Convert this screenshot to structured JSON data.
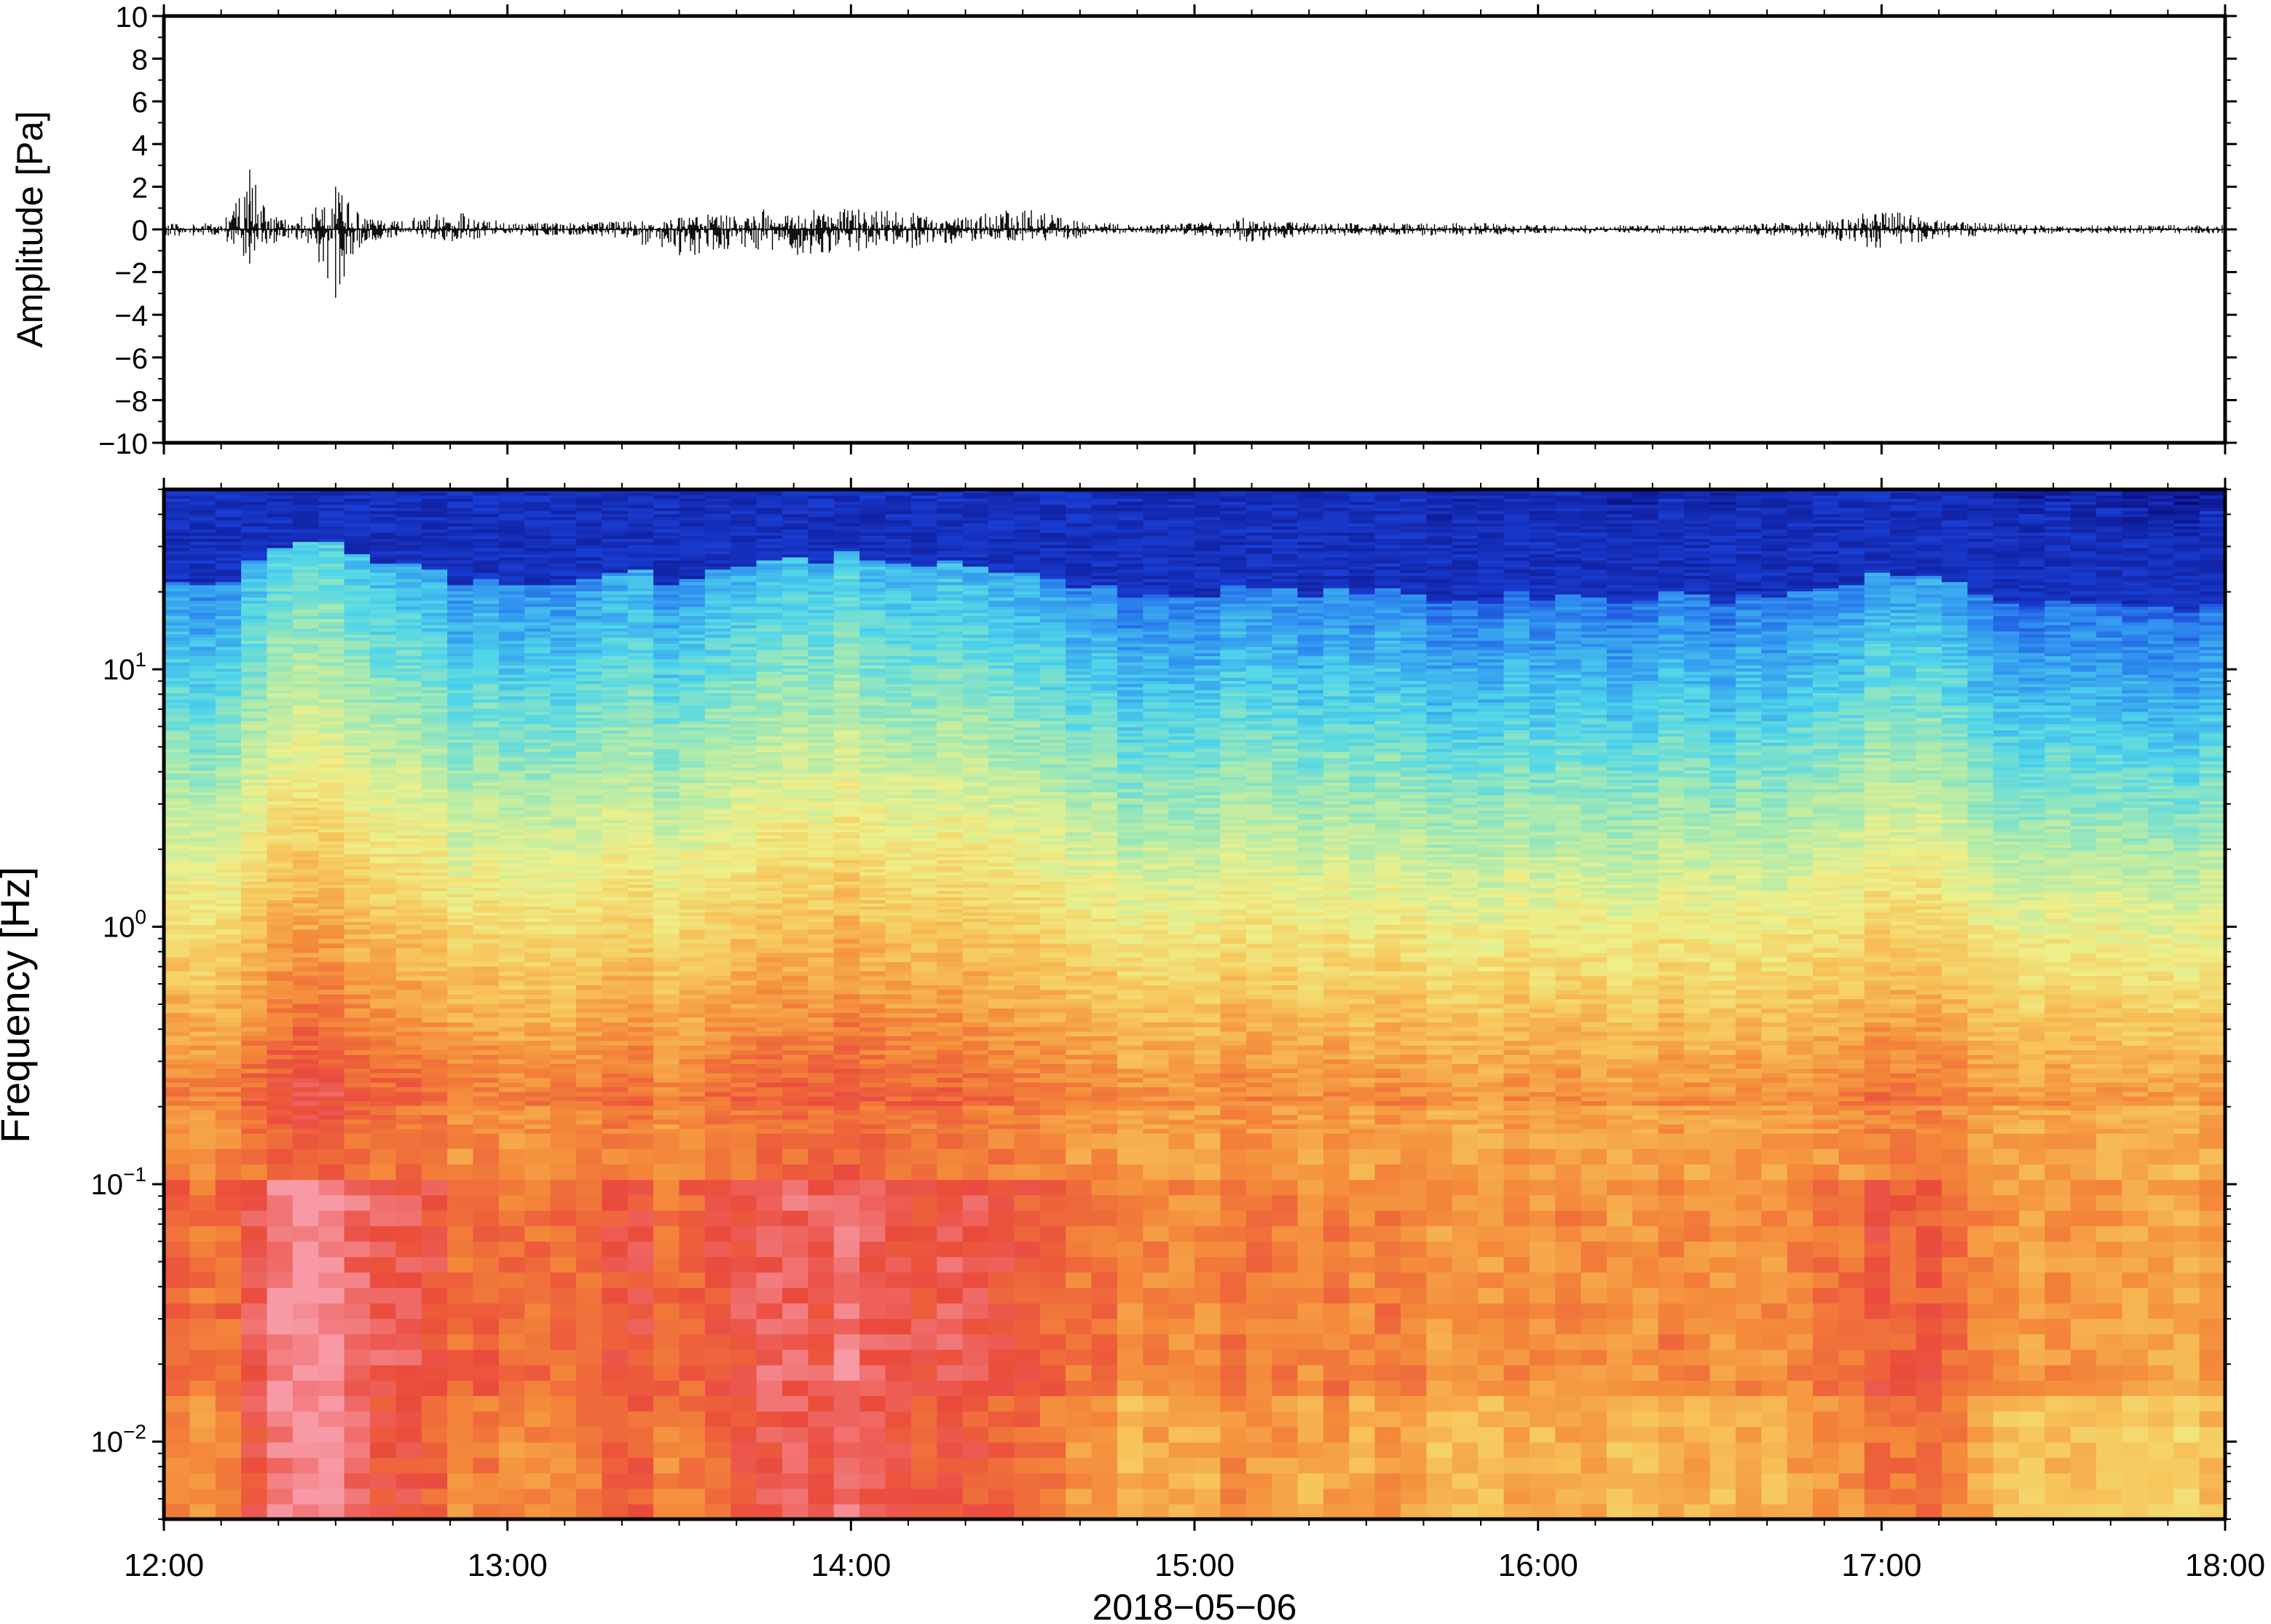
{
  "chart_data": [
    {
      "type": "line",
      "panel": "waveform",
      "ylabel": "Amplitude [Pa]",
      "ylim": [
        -10,
        10
      ],
      "yticks": [
        -10,
        -8,
        -6,
        -4,
        -2,
        0,
        2,
        4,
        6,
        8,
        10
      ],
      "ytick_labels": [
        "−10",
        "−8",
        "−6",
        "−4",
        "−2",
        "0",
        "2",
        "4",
        "6",
        "8",
        "10"
      ],
      "xlim_hours": [
        12,
        18
      ],
      "grid": false,
      "series": [
        {
          "values_envelope_note": "max/min amplitude per ~10 min segment",
          "x": [
            "12:00",
            "12:10",
            "12:15",
            "12:20",
            "12:25",
            "12:30",
            "12:35",
            "12:40",
            "12:50",
            "13:00",
            "13:10",
            "13:20",
            "13:30",
            "13:40",
            "13:50",
            "14:00",
            "14:10",
            "14:20",
            "14:30",
            "14:40",
            "14:50",
            "15:00",
            "15:10",
            "15:20",
            "15:30",
            "15:40",
            "15:50",
            "16:00",
            "16:10",
            "16:20",
            "16:30",
            "16:40",
            "16:50",
            "17:00",
            "17:05",
            "17:10",
            "17:20",
            "17:30",
            "17:40",
            "17:50",
            "18:00"
          ],
          "max": [
            0.3,
            0.3,
            2.8,
            0.5,
            0.6,
            2.0,
            0.6,
            0.4,
            0.9,
            0.3,
            0.3,
            0.4,
            0.6,
            0.8,
            1.1,
            1.0,
            0.8,
            0.6,
            1.0,
            0.4,
            0.2,
            0.3,
            0.6,
            0.3,
            0.3,
            0.3,
            0.3,
            0.2,
            0.2,
            0.2,
            0.2,
            0.3,
            0.4,
            0.9,
            0.8,
            0.4,
            0.3,
            0.2,
            0.2,
            0.2,
            0.2
          ],
          "min": [
            -0.3,
            -0.3,
            -1.6,
            -0.5,
            -0.6,
            -3.2,
            -0.6,
            -0.4,
            -0.6,
            -0.3,
            -0.3,
            -0.4,
            -1.3,
            -0.9,
            -1.2,
            -1.1,
            -0.9,
            -0.6,
            -0.7,
            -0.4,
            -0.2,
            -0.3,
            -0.6,
            -0.3,
            -0.3,
            -0.3,
            -0.3,
            -0.2,
            -0.2,
            -0.2,
            -0.2,
            -0.3,
            -0.4,
            -1.0,
            -0.8,
            -0.4,
            -0.3,
            -0.2,
            -0.2,
            -0.2,
            -0.2
          ]
        }
      ]
    },
    {
      "type": "heatmap",
      "panel": "spectrogram",
      "ylabel": "Frequency [Hz]",
      "yscale": "log",
      "ylim_hz": [
        0.005,
        50
      ],
      "yticks": [
        0.01,
        0.1,
        1,
        10
      ],
      "ytick_labels": [
        {
          "base": "10",
          "exp": "−2"
        },
        {
          "base": "10",
          "exp": "−1"
        },
        {
          "base": "10",
          "exp": "0"
        },
        {
          "base": "10",
          "exp": "1"
        }
      ],
      "xlabel": "2018−05−06",
      "xticks": [
        "12:00",
        "13:00",
        "14:00",
        "15:00",
        "16:00",
        "17:00",
        "18:00"
      ],
      "xlim_hours": [
        12,
        18
      ],
      "colormap": [
        "#0a0a7a",
        "#1a3fd6",
        "#2f8ef0",
        "#4fd6ea",
        "#a8eab0",
        "#eef08a",
        "#f7c55a",
        "#f48a3a",
        "#ea4a3c",
        "#f79aa6"
      ],
      "grid": false,
      "activity_profile": {
        "x": [
          "12:00",
          "12:10",
          "12:20",
          "12:30",
          "12:40",
          "12:50",
          "13:00",
          "13:10",
          "13:20",
          "13:30",
          "13:40",
          "13:50",
          "14:00",
          "14:10",
          "14:20",
          "14:30",
          "14:40",
          "14:50",
          "15:00",
          "15:10",
          "15:20",
          "15:30",
          "15:40",
          "15:50",
          "16:00",
          "16:10",
          "16:20",
          "16:30",
          "16:40",
          "16:50",
          "17:00",
          "17:10",
          "17:20",
          "17:30",
          "17:40",
          "17:50",
          "18:00"
        ],
        "level": [
          0.55,
          0.6,
          0.9,
          1.0,
          0.75,
          0.65,
          0.55,
          0.55,
          0.7,
          0.6,
          0.75,
          0.8,
          0.85,
          0.8,
          0.75,
          0.7,
          0.55,
          0.45,
          0.5,
          0.55,
          0.5,
          0.5,
          0.45,
          0.45,
          0.45,
          0.4,
          0.45,
          0.45,
          0.45,
          0.5,
          0.7,
          0.6,
          0.45,
          0.4,
          0.35,
          0.35,
          0.35
        ]
      }
    }
  ]
}
